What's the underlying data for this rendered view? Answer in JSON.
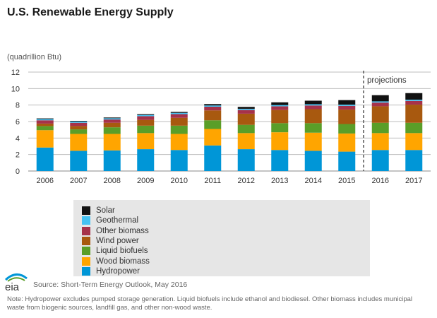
{
  "title": "U.S. Renewable Energy Supply",
  "unit_label": "(quadrillion Btu)",
  "source": "Source: Short-Term Energy Outlook, May 2016",
  "note": "Note: Hydropower excludes pumped storage generation. Liquid biofuels include ethanol and biodiesel. Other biomass includes municipal waste from biogenic sources, landfill gas, and other non-wood waste.",
  "logo_text": "eia",
  "chart_data": {
    "type": "bar",
    "stacked": true,
    "title": "U.S. Renewable Energy Supply",
    "ylabel": "(quadrillion Btu)",
    "xlabel": "",
    "ylim": [
      0,
      12
    ],
    "yticks": [
      0,
      2,
      4,
      6,
      8,
      10,
      12
    ],
    "grid": true,
    "categories": [
      "2006",
      "2007",
      "2008",
      "2009",
      "2010",
      "2011",
      "2012",
      "2013",
      "2014",
      "2015",
      "2016",
      "2017"
    ],
    "projection_start": "2016",
    "projection_label": "projections",
    "series": [
      {
        "name": "Hydropower",
        "color": "#0096d7",
        "values": [
          2.85,
          2.45,
          2.5,
          2.65,
          2.55,
          3.1,
          2.65,
          2.55,
          2.45,
          2.35,
          2.55,
          2.55
        ]
      },
      {
        "name": "Wood biomass",
        "color": "#ffa500",
        "values": [
          2.1,
          2.05,
          2.0,
          1.95,
          1.95,
          2.0,
          1.95,
          2.15,
          2.2,
          2.2,
          2.05,
          2.05
        ]
      },
      {
        "name": "Liquid biofuels",
        "color": "#5a9e28",
        "values": [
          0.5,
          0.55,
          0.8,
          0.9,
          1.0,
          1.05,
          1.0,
          1.1,
          1.15,
          1.15,
          1.25,
          1.25
        ]
      },
      {
        "name": "Wind power",
        "color": "#a8590f",
        "values": [
          0.3,
          0.4,
          0.55,
          0.7,
          0.95,
          1.2,
          1.35,
          1.6,
          1.7,
          1.75,
          2.0,
          2.2
        ]
      },
      {
        "name": "Other biomass",
        "color": "#a6324a",
        "values": [
          0.4,
          0.4,
          0.4,
          0.45,
          0.45,
          0.45,
          0.45,
          0.45,
          0.45,
          0.45,
          0.45,
          0.45
        ]
      },
      {
        "name": "Geothermal",
        "color": "#46c2f2",
        "values": [
          0.15,
          0.15,
          0.15,
          0.15,
          0.15,
          0.15,
          0.15,
          0.15,
          0.15,
          0.15,
          0.15,
          0.15
        ]
      },
      {
        "name": "Solar",
        "color": "#111111",
        "values": [
          0.08,
          0.08,
          0.09,
          0.1,
          0.12,
          0.17,
          0.23,
          0.33,
          0.43,
          0.55,
          0.75,
          0.8
        ]
      }
    ],
    "legend_order": [
      "Solar",
      "Geothermal",
      "Other biomass",
      "Wind power",
      "Liquid biofuels",
      "Wood biomass",
      "Hydropower"
    ],
    "legend_position": "bottom"
  }
}
